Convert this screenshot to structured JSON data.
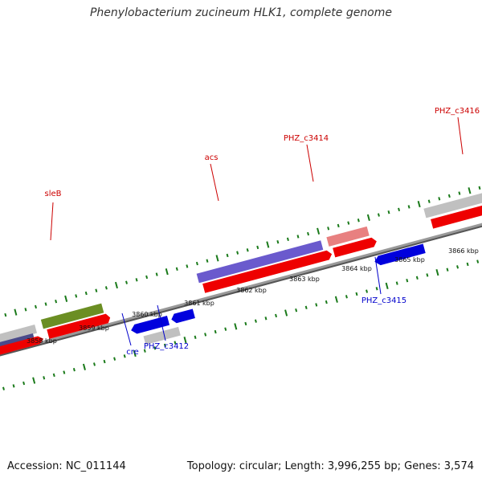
{
  "title": "Phenylobacterium zucineum HLK1, complete genome",
  "footer": {
    "accession": "Accession: NC_011144",
    "topology": "Topology: circular; Length: 3,996,255 bp; Genes: 3,574"
  },
  "tick_labels": [
    "3858 kbp",
    "3859 kbp",
    "3860 kbp",
    "3861 kbp",
    "3862 kbp",
    "3863 kbp",
    "3864 kbp",
    "3865 kbp",
    "3866 kbp"
  ],
  "genes_top": [
    {
      "name": "sleB",
      "color": "#cc0000"
    },
    {
      "name": "acs",
      "color": "#cc0000"
    },
    {
      "name": "PHZ_c3414",
      "color": "#cc0000"
    },
    {
      "name": "PHZ_c3416",
      "color": "#cc0000"
    }
  ],
  "genes_bottom": [
    {
      "name": "cre",
      "color": "#0000cc"
    },
    {
      "name": "PHZ_c3412",
      "color": "#0000cc"
    },
    {
      "name": "PHZ_c3415",
      "color": "#0000cc"
    }
  ],
  "colors": {
    "forward_cds": "#ee0000",
    "reverse_cds": "#0000dd",
    "backbone": "#888888",
    "ticks": "#1a7a1a",
    "gray_feature": "#c0c0c0",
    "purple_feature": "#6a5acd",
    "olive_feature": "#6b8e23",
    "pink_feature": "#e88080"
  }
}
